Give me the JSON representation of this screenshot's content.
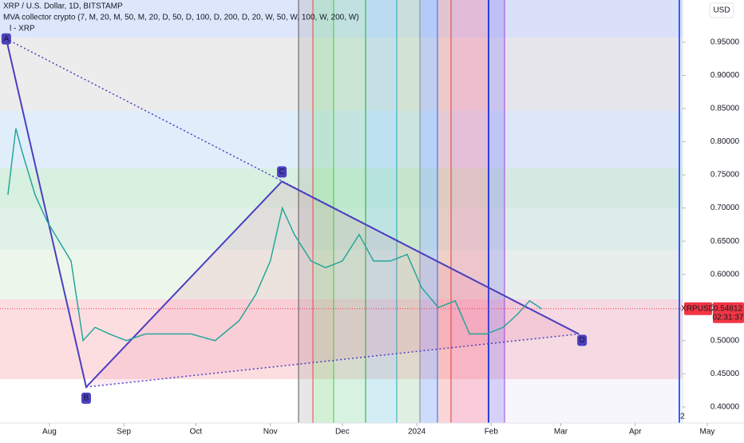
{
  "chart_data": {
    "type": "line",
    "title": "XRP / U.S. Dollar, 1D, BITSTAMP",
    "indicator": "MVA collector crypto (7, M, 20, M, 50, M, 20, D, 50, D, 100, D, 200, D, 20, W, 50, W, 100, W, 200, W)",
    "indicator2": "l - XRP",
    "currency": "USD",
    "pane_label": "2",
    "series": [
      {
        "name": "XRPUSD",
        "color": "#26a69a",
        "x": [
          13.7,
          17,
          20,
          25,
          30,
          35,
          40,
          45,
          50,
          56,
          63,
          71,
          80,
          90,
          100,
          110,
          117,
          123,
          128,
          133,
          140,
          146,
          153,
          160,
          166,
          173,
          180,
          186,
          193,
          200,
          206,
          213,
          220,
          226,
          231,
          236
        ],
        "values": [
          0.72,
          0.82,
          0.78,
          0.72,
          0.68,
          0.65,
          0.62,
          0.5,
          0.52,
          0.51,
          0.5,
          0.51,
          0.51,
          0.51,
          0.5,
          0.53,
          0.57,
          0.62,
          0.7,
          0.66,
          0.62,
          0.61,
          0.62,
          0.66,
          0.62,
          0.62,
          0.63,
          0.58,
          0.55,
          0.56,
          0.51,
          0.51,
          0.52,
          0.54,
          0.56,
          0.548
        ]
      }
    ],
    "pattern": {
      "color": "#4b3fc0",
      "points": [
        {
          "label": "A",
          "x": 13,
          "value": 0.955
        },
        {
          "label": "B",
          "x": 46.3,
          "value": 0.43
        },
        {
          "label": "C",
          "x": 127.8,
          "value": 0.74
        },
        {
          "label": "D",
          "x": 251.5,
          "value": 0.51
        }
      ]
    },
    "last_price": {
      "label": "XRPUSD",
      "value": 0.54812,
      "value_label": "0.54812",
      "countdown": "02:31:37",
      "color": "#f23645"
    },
    "xlim": [
      10.4,
      294.7
    ],
    "xticks": [
      {
        "value": 31,
        "label": "Aug"
      },
      {
        "value": 62,
        "label": "Sep"
      },
      {
        "value": 92,
        "label": "Oct"
      },
      {
        "value": 123,
        "label": "Nov"
      },
      {
        "value": 153,
        "label": "Dec"
      },
      {
        "value": 184,
        "label": "2024"
      },
      {
        "value": 215,
        "label": "Feb"
      },
      {
        "value": 244,
        "label": "Mar"
      },
      {
        "value": 275,
        "label": "Apr"
      },
      {
        "value": 305,
        "label": "May"
      }
    ],
    "ylim": [
      0.3757,
      1.0137
    ],
    "yticks": [
      {
        "value": 0.4,
        "label": "0.40000"
      },
      {
        "value": 0.45,
        "label": "0.45000"
      },
      {
        "value": 0.5,
        "label": "0.50000"
      },
      {
        "value": 0.55,
        "label": "0.55000"
      },
      {
        "value": 0.6,
        "label": "0.60000"
      },
      {
        "value": 0.65,
        "label": "0.65000"
      },
      {
        "value": 0.7,
        "label": "0.70000"
      },
      {
        "value": 0.75,
        "label": "0.75000"
      },
      {
        "value": 0.8,
        "label": "0.80000"
      },
      {
        "value": 0.85,
        "label": "0.85000"
      },
      {
        "value": 0.9,
        "label": "0.90000"
      },
      {
        "value": 0.95,
        "label": "0.95000"
      }
    ],
    "grid": false
  }
}
